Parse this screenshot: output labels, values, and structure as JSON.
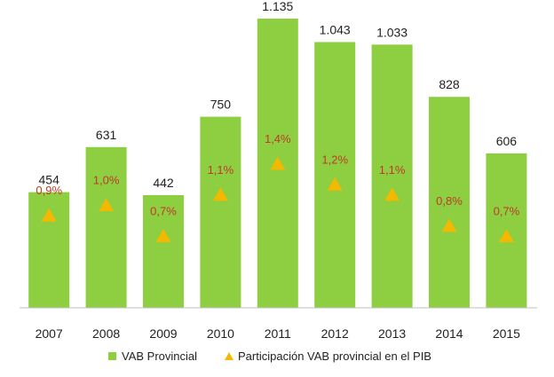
{
  "colors": {
    "bar": "#8dcf40",
    "marker": "#f5b800",
    "share_text": "#c0392b",
    "axis": "#bfbfbf"
  },
  "chart_data": {
    "type": "bar",
    "categories": [
      "2007",
      "2008",
      "2009",
      "2010",
      "2011",
      "2012",
      "2013",
      "2014",
      "2015"
    ],
    "series": [
      {
        "name": "VAB Provincial",
        "type": "bar",
        "values": [
          454,
          631,
          442,
          750,
          1135,
          1043,
          1033,
          828,
          606
        ],
        "labels": [
          "454",
          "631",
          "442",
          "750",
          "1.135",
          "1.043",
          "1.033",
          "828",
          "606"
        ]
      },
      {
        "name": "Participación VAB provincial en el PIB",
        "type": "scatter",
        "marker": "triangle",
        "values": [
          0.9,
          1.0,
          0.7,
          1.1,
          1.4,
          1.2,
          1.1,
          0.8,
          0.7
        ],
        "labels": [
          "0,9%",
          "1,0%",
          "0,7%",
          "1,1%",
          "1,4%",
          "1,2%",
          "1,1%",
          "0,8%",
          "0,7%"
        ]
      }
    ],
    "ylim": [
      0,
      1135
    ],
    "secondary_ylim": [
      0,
      2.8
    ],
    "grid": false,
    "legend_position": "bottom"
  }
}
